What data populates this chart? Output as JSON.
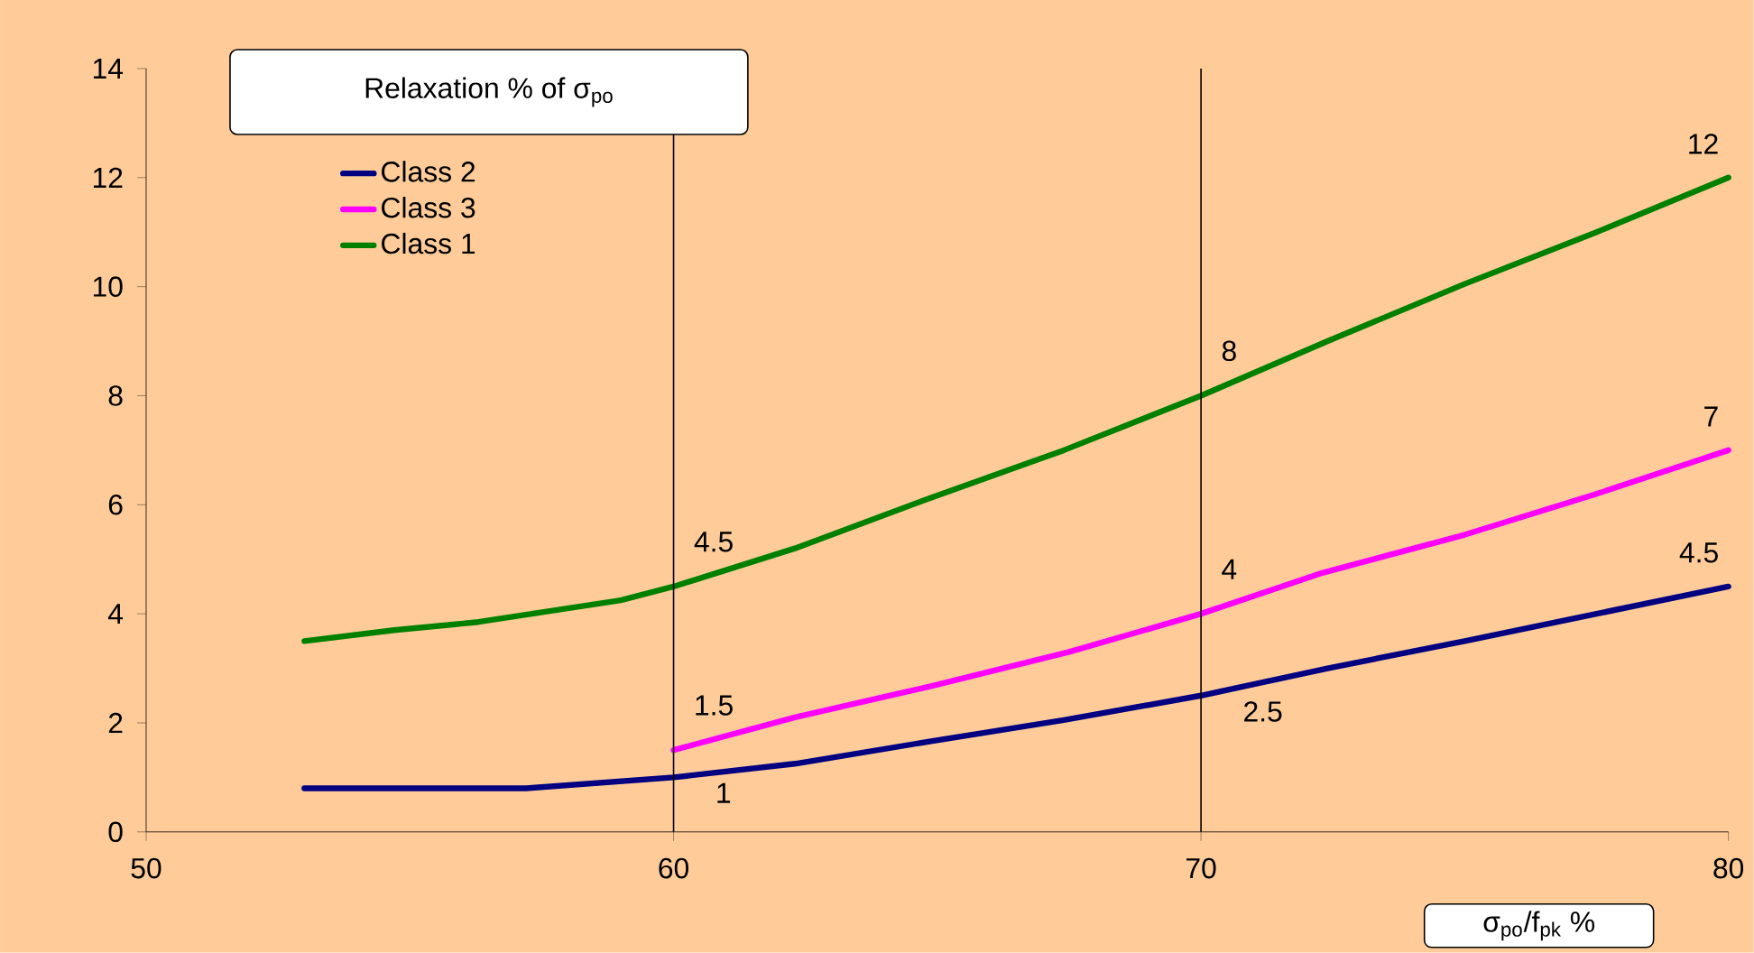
{
  "chart_data": {
    "type": "line",
    "xlabel": "σ$_{po}$/f$_{pk}$ %",
    "legend_title": "Relaxation % of σ$_{po}$",
    "xlim": [
      50,
      80
    ],
    "xticks": [
      50,
      60,
      70,
      80
    ],
    "ylim": [
      0,
      14
    ],
    "yticks": [
      0,
      2,
      4,
      6,
      8,
      10,
      12,
      14
    ],
    "legend": "top left",
    "grid": false,
    "ref_lines": [
      {
        "axis": "x",
        "value": 60
      },
      {
        "axis": "x",
        "value": 70
      }
    ],
    "series": [
      {
        "name": "Class 2",
        "color": "#000080",
        "x": [
          53,
          57.2,
          60,
          62.3,
          64.8,
          67.4,
          70,
          72.4,
          75,
          77.5,
          80
        ],
        "values": [
          0.8,
          0.8,
          1,
          1.25,
          1.65,
          2.05,
          2.5,
          3,
          3.5,
          4,
          4.5
        ]
      },
      {
        "name": "Class 3",
        "color": "#ff00ff",
        "x": [
          60,
          62.3,
          65,
          67.5,
          70,
          72.3,
          75,
          77.5,
          80
        ],
        "values": [
          1.5,
          2.1,
          2.7,
          3.3,
          4,
          4.75,
          5.45,
          6.2,
          7
        ]
      },
      {
        "name": "Class 1",
        "color": "#008000",
        "x": [
          53,
          54.7,
          56.3,
          59,
          60,
          62.3,
          64.8,
          67.4,
          70,
          72.4,
          75,
          77.5,
          80
        ],
        "values": [
          3.5,
          3.7,
          3.85,
          4.25,
          4.5,
          5.2,
          6.1,
          7,
          8,
          9,
          10.05,
          11,
          12
        ]
      }
    ],
    "annotations": [
      {
        "text": "4.5",
        "x": 60,
        "y": 4.5
      },
      {
        "text": "8",
        "x": 70,
        "y": 8
      },
      {
        "text": "12",
        "x": 80,
        "y": 12
      },
      {
        "text": "1.5",
        "x": 60,
        "y": 1.5
      },
      {
        "text": "4",
        "x": 70,
        "y": 4
      },
      {
        "text": "7",
        "x": 80,
        "y": 7
      },
      {
        "text": "1",
        "x": 60,
        "y": 1
      },
      {
        "text": "2.5",
        "x": 70,
        "y": 2.5
      },
      {
        "text": "4.5",
        "x": 80,
        "y": 4.5
      }
    ]
  }
}
